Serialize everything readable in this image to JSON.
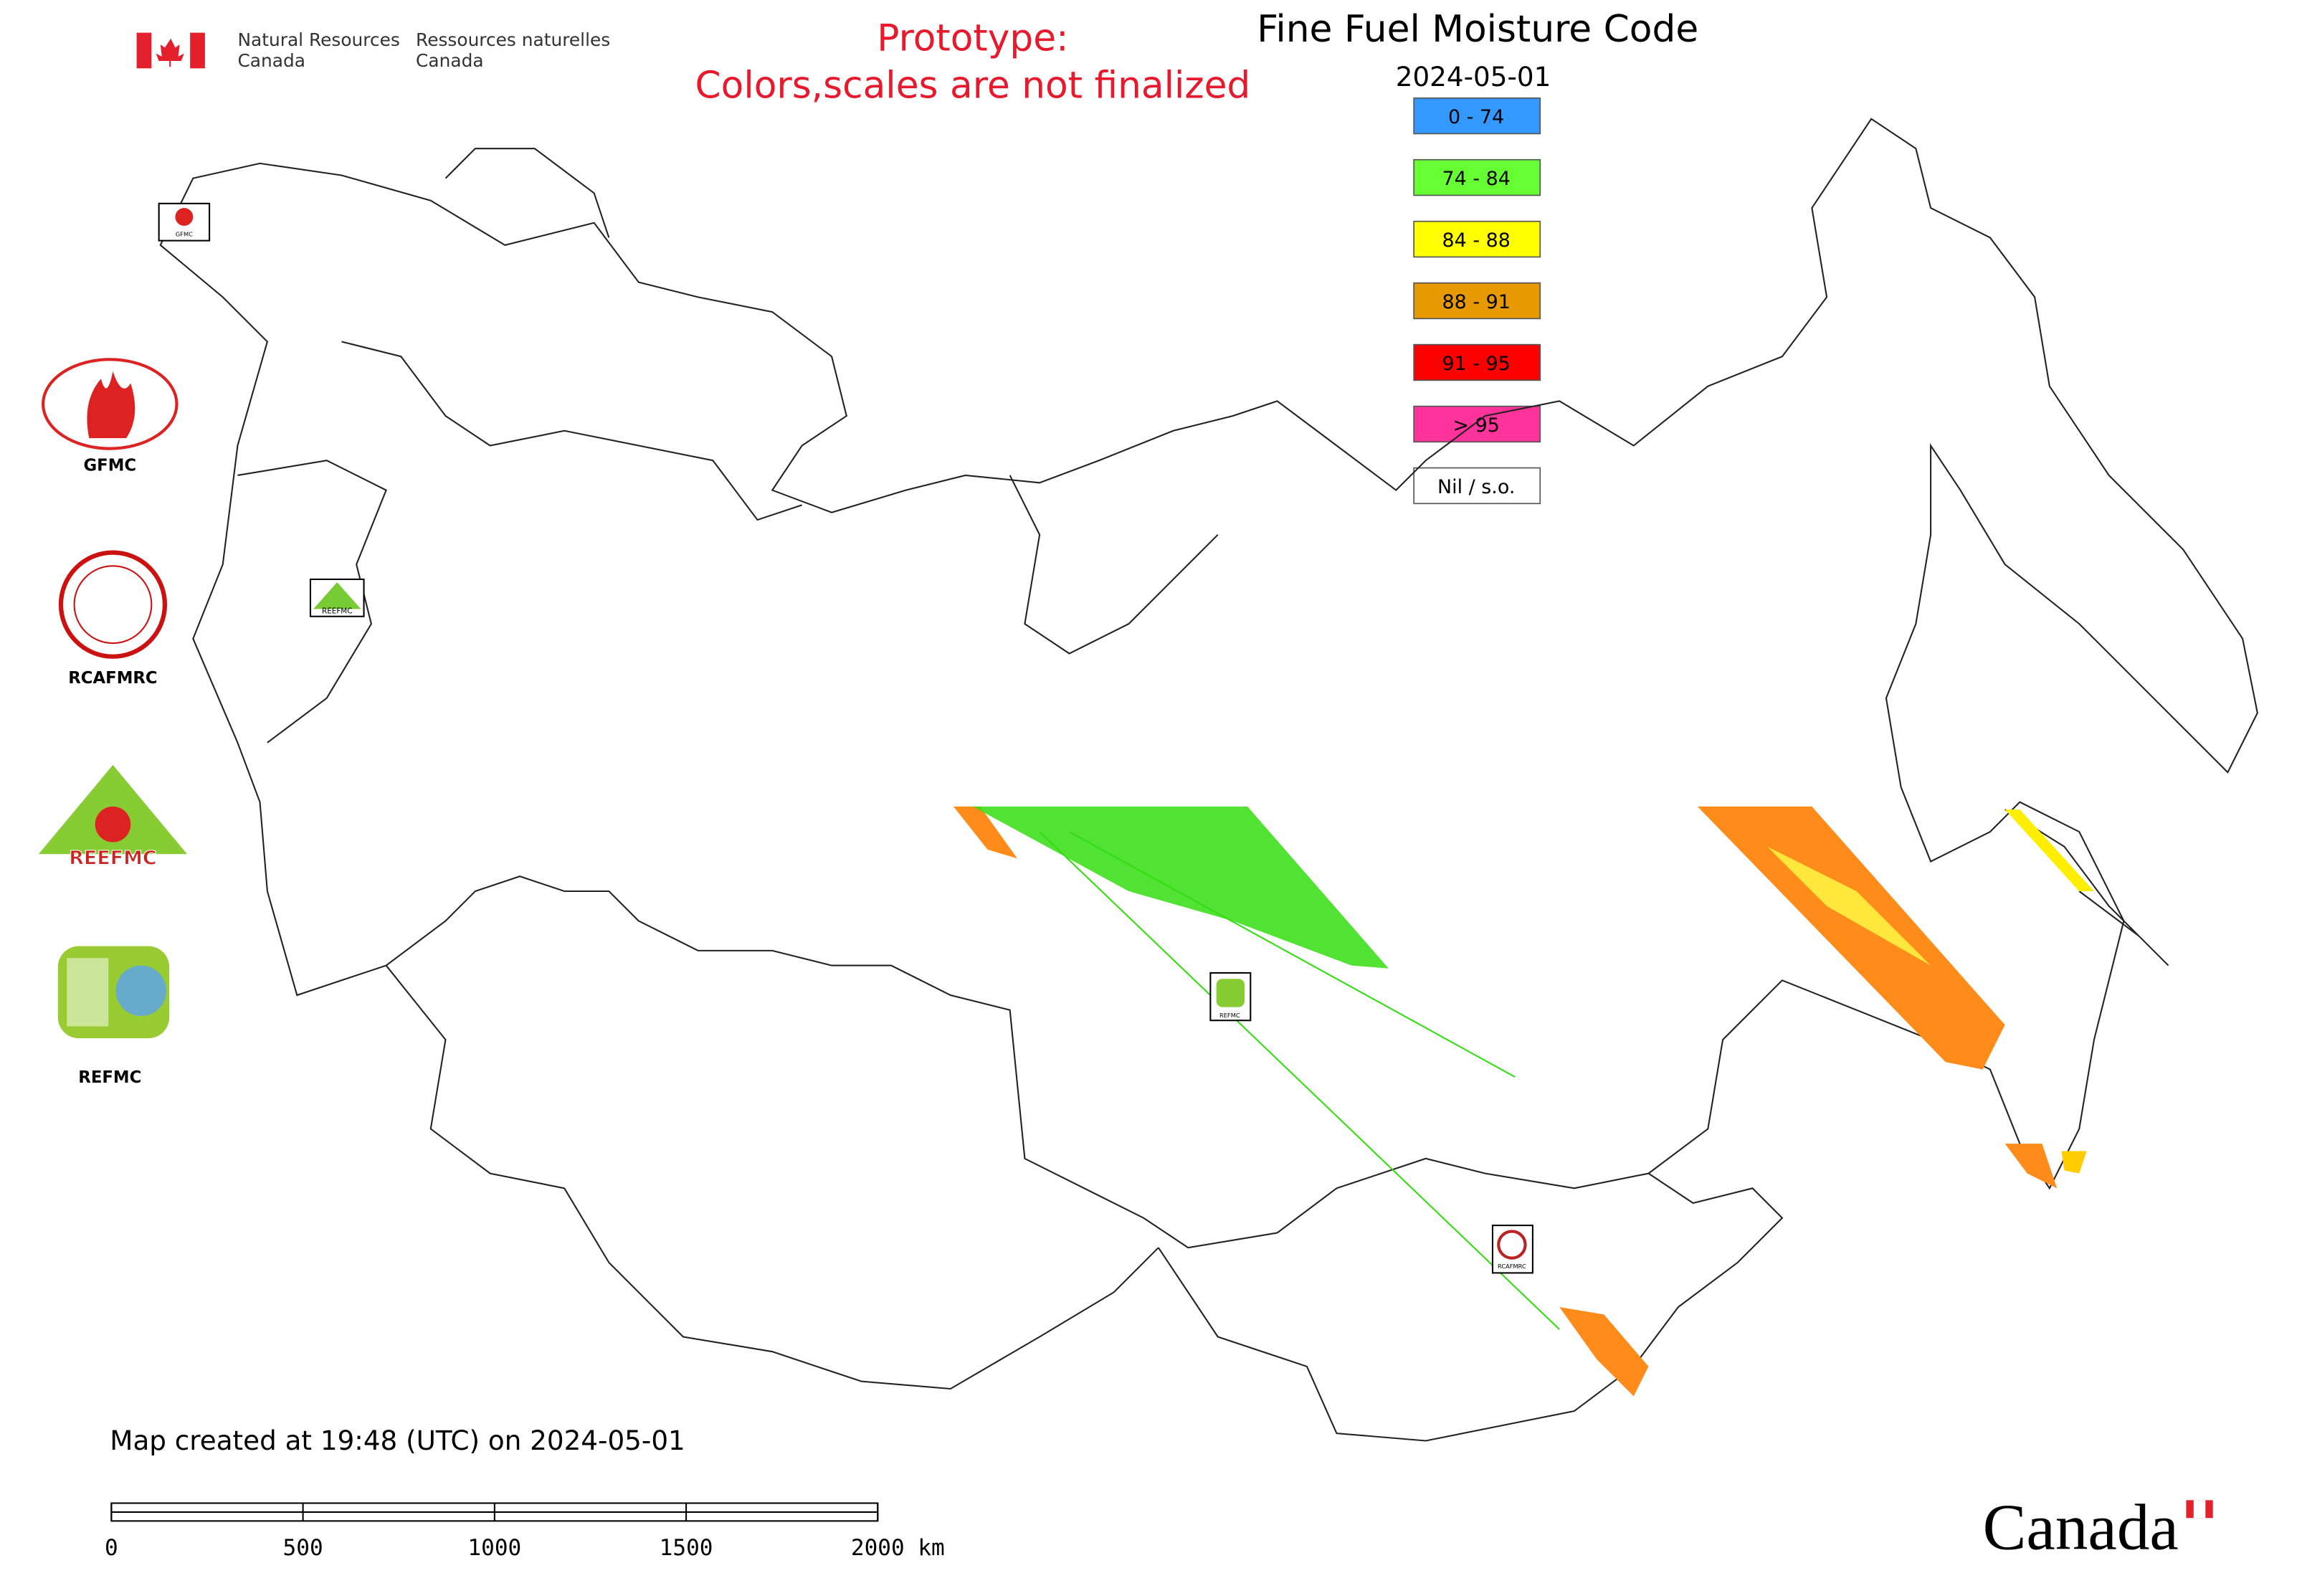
{
  "header": {
    "department_en": [
      "Natural Resources",
      "Canada"
    ],
    "department_fr": [
      "Ressources naturelles",
      "Canada"
    ]
  },
  "notice": [
    "Prototype:",
    "Colors,scales are not finalized"
  ],
  "title": "Fine Fuel Moisture Code",
  "date": "2024-05-01",
  "legend": [
    {
      "label": "0 - 74",
      "color": "#3399ff"
    },
    {
      "label": "74 - 84",
      "color": "#66ff33"
    },
    {
      "label": "84 - 88",
      "color": "#ffff00"
    },
    {
      "label": "88 - 91",
      "color": "#e69900"
    },
    {
      "label": "91 - 95",
      "color": "#ff0000"
    },
    {
      "label": "> 95",
      "color": "#ff3399"
    },
    {
      "label": "Nil / s.o.",
      "color": "#ffffff"
    }
  ],
  "logos": [
    "GFMC",
    "RCAFMRC",
    "REEFMC",
    "REFMC"
  ],
  "map_markers": [
    "GFMC",
    "REEFMC",
    "REFMC",
    "RCAFMRC"
  ],
  "footer": "Map created at 19:48 (UTC) on 2024-05-01",
  "scale_bar": {
    "ticks": [
      0,
      500,
      1000,
      1500,
      2000
    ],
    "unit": "km"
  },
  "wordmark": "Canada"
}
